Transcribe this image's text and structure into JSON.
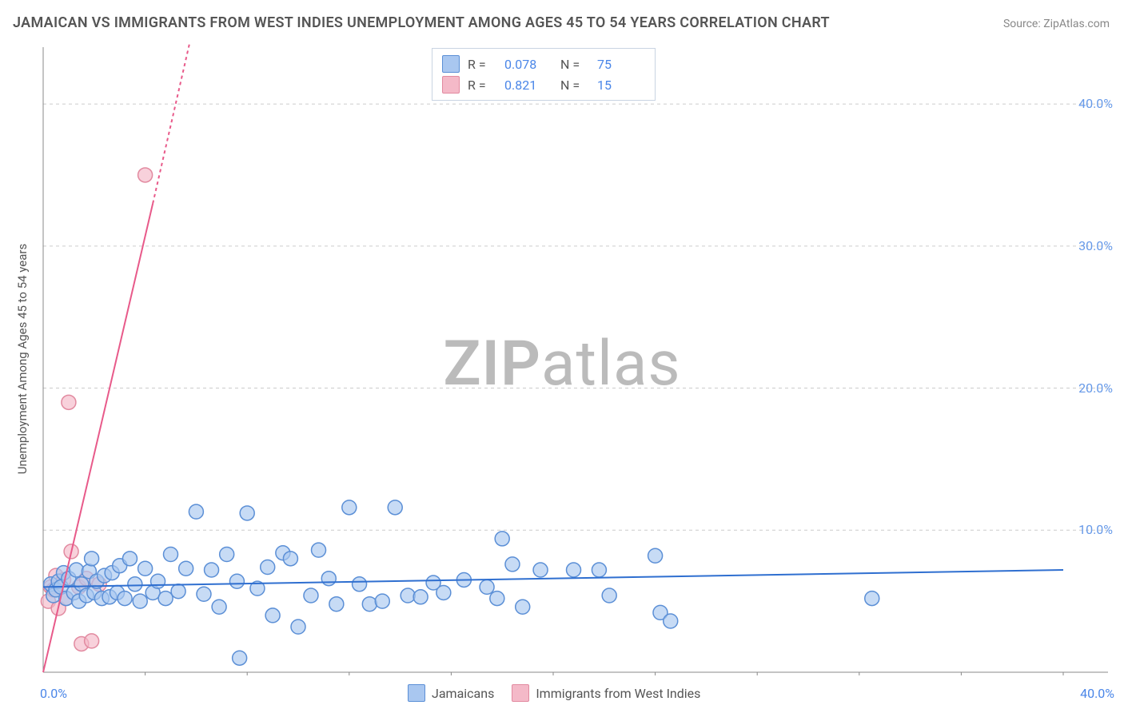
{
  "title": "JAMAICAN VS IMMIGRANTS FROM WEST INDIES UNEMPLOYMENT AMONG AGES 45 TO 54 YEARS CORRELATION CHART",
  "source_label": "Source:",
  "source_value": "ZipAtlas.com",
  "ylabel": "Unemployment Among Ages 45 to 54 years",
  "watermark_bold": "ZIP",
  "watermark_rest": "atlas",
  "chart": {
    "type": "scatter",
    "xlim": [
      0,
      40
    ],
    "ylim": [
      0,
      44
    ],
    "x_origin_label": "0.0%",
    "x_max_label": "40.0%",
    "y_ticks": [
      10.0,
      20.0,
      30.0,
      40.0
    ],
    "y_tick_labels": [
      "10.0%",
      "20.0%",
      "30.0%",
      "40.0%"
    ],
    "x_minor_ticks": [
      4,
      8,
      12,
      16,
      20,
      24,
      28,
      32,
      36,
      40
    ],
    "grid_color": "#cccccc",
    "grid_dash": "4,4",
    "axis_color": "#888888",
    "background_color": "#ffffff",
    "marker_radius": 9,
    "marker_stroke_width": 1.5,
    "series": {
      "jamaicans": {
        "label": "Jamaicans",
        "fill_color": "#a9c7f0",
        "stroke_color": "#5b8fd6",
        "opacity": 0.65,
        "trend_color": "#2f6fd0",
        "trend_width": 2,
        "trend_y_at_x0": 6.0,
        "trend_y_at_xmax": 7.2,
        "R": "0.078",
        "N": "75",
        "points": [
          [
            0.3,
            6.2
          ],
          [
            0.4,
            5.4
          ],
          [
            0.5,
            5.8
          ],
          [
            0.6,
            6.4
          ],
          [
            0.7,
            6.0
          ],
          [
            0.8,
            7.0
          ],
          [
            0.9,
            5.2
          ],
          [
            1.0,
            6.6
          ],
          [
            1.2,
            5.6
          ],
          [
            1.3,
            7.2
          ],
          [
            1.4,
            5.0
          ],
          [
            1.5,
            6.2
          ],
          [
            1.7,
            5.4
          ],
          [
            1.8,
            7.1
          ],
          [
            1.9,
            8.0
          ],
          [
            2.0,
            5.6
          ],
          [
            2.1,
            6.4
          ],
          [
            2.3,
            5.2
          ],
          [
            2.4,
            6.8
          ],
          [
            2.6,
            5.3
          ],
          [
            2.7,
            7.0
          ],
          [
            2.9,
            5.6
          ],
          [
            3.0,
            7.5
          ],
          [
            3.2,
            5.2
          ],
          [
            3.4,
            8.0
          ],
          [
            3.6,
            6.2
          ],
          [
            3.8,
            5.0
          ],
          [
            4.0,
            7.3
          ],
          [
            4.3,
            5.6
          ],
          [
            4.5,
            6.4
          ],
          [
            4.8,
            5.2
          ],
          [
            5.0,
            8.3
          ],
          [
            5.3,
            5.7
          ],
          [
            5.6,
            7.3
          ],
          [
            6.0,
            11.3
          ],
          [
            6.3,
            5.5
          ],
          [
            6.6,
            7.2
          ],
          [
            6.9,
            4.6
          ],
          [
            7.2,
            8.3
          ],
          [
            7.6,
            6.4
          ],
          [
            7.7,
            1.0
          ],
          [
            8.0,
            11.2
          ],
          [
            8.4,
            5.9
          ],
          [
            8.8,
            7.4
          ],
          [
            9.0,
            4.0
          ],
          [
            9.4,
            8.4
          ],
          [
            9.7,
            8.0
          ],
          [
            10.0,
            3.2
          ],
          [
            10.5,
            5.4
          ],
          [
            10.8,
            8.6
          ],
          [
            11.2,
            6.6
          ],
          [
            11.5,
            4.8
          ],
          [
            12.0,
            11.6
          ],
          [
            12.4,
            6.2
          ],
          [
            12.8,
            4.8
          ],
          [
            13.3,
            5.0
          ],
          [
            13.8,
            11.6
          ],
          [
            14.3,
            5.4
          ],
          [
            14.8,
            5.3
          ],
          [
            15.3,
            6.3
          ],
          [
            15.7,
            5.6
          ],
          [
            16.5,
            6.5
          ],
          [
            17.4,
            6.0
          ],
          [
            17.8,
            5.2
          ],
          [
            18.0,
            9.4
          ],
          [
            18.4,
            7.6
          ],
          [
            18.8,
            4.6
          ],
          [
            19.5,
            7.2
          ],
          [
            20.8,
            7.2
          ],
          [
            21.8,
            7.2
          ],
          [
            22.2,
            5.4
          ],
          [
            24.0,
            8.2
          ],
          [
            24.2,
            4.2
          ],
          [
            24.6,
            3.6
          ],
          [
            32.5,
            5.2
          ]
        ]
      },
      "west_indies": {
        "label": "Immigrants from West Indies",
        "fill_color": "#f4b9c8",
        "stroke_color": "#e28aa0",
        "opacity": 0.65,
        "trend_color": "#e85a8a",
        "trend_width": 2,
        "trend_dash_extend": "4,4",
        "trend_y_at_x0": 0.0,
        "trend_y_at_xsolid": 33.0,
        "trend_x_solid_end": 4.3,
        "trend_y_at_xmax_dash": 51.0,
        "trend_x_dash_end": 6.6,
        "R": "0.821",
        "N": "15",
        "points": [
          [
            0.2,
            5.0
          ],
          [
            0.3,
            6.0
          ],
          [
            0.4,
            5.8
          ],
          [
            0.5,
            6.8
          ],
          [
            0.6,
            4.5
          ],
          [
            0.8,
            6.5
          ],
          [
            0.9,
            5.2
          ],
          [
            1.0,
            19.0
          ],
          [
            1.1,
            8.5
          ],
          [
            1.4,
            6.0
          ],
          [
            1.5,
            2.0
          ],
          [
            1.7,
            6.6
          ],
          [
            1.9,
            2.2
          ],
          [
            2.2,
            6.2
          ],
          [
            4.0,
            35.0
          ]
        ]
      }
    }
  },
  "legend_top": {
    "r_label": "R =",
    "n_label": "N ="
  }
}
